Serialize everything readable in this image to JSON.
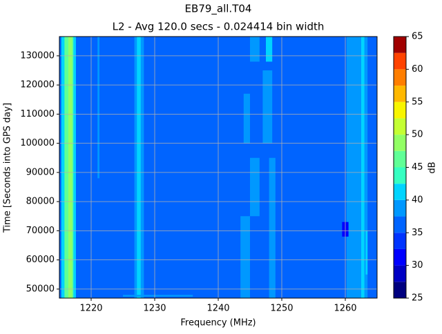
{
  "chart_data": {
    "type": "heatmap",
    "title": "EB79_all.T04",
    "subtitle": "L2 - Avg 120.0 secs - 0.024414 bin width",
    "x_label": "Frequency (MHz)",
    "y_label": "Time [Seconds into GPS day]",
    "colorbar_label": "dB",
    "xlim": [
      1215,
      1265
    ],
    "xticks": [
      1220,
      1230,
      1240,
      1250,
      1260
    ],
    "ylim": [
      46900,
      136600
    ],
    "yticks": [
      50000,
      60000,
      70000,
      80000,
      90000,
      100000,
      110000,
      120000,
      130000
    ],
    "grid": true,
    "levels": [
      25,
      27.5,
      30,
      32.5,
      35,
      37.5,
      40,
      42.5,
      45,
      47.5,
      50,
      52.5,
      55,
      57.5,
      60,
      62.5,
      65
    ],
    "colors": [
      "#00007f",
      "#0000c4",
      "#0000ff",
      "#0034ff",
      "#0064ff",
      "#0098ff",
      "#00d4ff",
      "#36ffc1",
      "#60ff96",
      "#92ff64",
      "#c4ff33",
      "#f8f500",
      "#ffb800",
      "#ff7e00",
      "#ff4300",
      "#a00000"
    ],
    "colorbar_ticks": [
      25,
      30,
      35,
      40,
      45,
      50,
      55,
      60,
      65
    ],
    "background_value": 36,
    "features": [
      {
        "x0": 1215.3,
        "x1": 1217.6,
        "y0": 46900,
        "y1": 136600,
        "value": 41
      },
      {
        "x0": 1215.8,
        "x1": 1217.2,
        "y0": 46900,
        "y1": 136600,
        "value": 46
      },
      {
        "x0": 1216.4,
        "x1": 1217.0,
        "y0": 46900,
        "y1": 136600,
        "value": 49
      },
      {
        "x0": 1221.0,
        "x1": 1221.3,
        "y0": 88000,
        "y1": 136600,
        "value": 38.5
      },
      {
        "x0": 1226.8,
        "x1": 1228.3,
        "y0": 46900,
        "y1": 136600,
        "value": 38.5
      },
      {
        "x0": 1227.2,
        "x1": 1227.8,
        "y0": 46900,
        "y1": 136600,
        "value": 41
      },
      {
        "x0": 1225.0,
        "x1": 1236.0,
        "y0": 47400,
        "y1": 48000,
        "value": 38.5
      },
      {
        "x0": 1243.5,
        "x1": 1245.0,
        "y0": 46900,
        "y1": 75000,
        "value": 38.5
      },
      {
        "x0": 1245.0,
        "x1": 1246.5,
        "y0": 75000,
        "y1": 95000,
        "value": 38.5
      },
      {
        "x0": 1244.0,
        "x1": 1245.0,
        "y0": 100000,
        "y1": 117000,
        "value": 38.5
      },
      {
        "x0": 1248.0,
        "x1": 1249.0,
        "y0": 46900,
        "y1": 95000,
        "value": 38.5
      },
      {
        "x0": 1247.0,
        "x1": 1248.5,
        "y0": 100000,
        "y1": 125000,
        "value": 38.5
      },
      {
        "x0": 1245.0,
        "x1": 1246.5,
        "y0": 128000,
        "y1": 136600,
        "value": 38.5
      },
      {
        "x0": 1247.5,
        "x1": 1248.5,
        "y0": 128000,
        "y1": 136600,
        "value": 41
      },
      {
        "x0": 1260.2,
        "x1": 1263.5,
        "y0": 46900,
        "y1": 136600,
        "value": 38.5
      },
      {
        "x0": 1262.5,
        "x1": 1263.0,
        "y0": 46900,
        "y1": 136600,
        "value": 41
      },
      {
        "x0": 1263.2,
        "x1": 1263.5,
        "y0": 55000,
        "y1": 70000,
        "value": 41
      },
      {
        "x0": 1259.5,
        "x1": 1260.5,
        "y0": 68000,
        "y1": 73000,
        "value": 30
      }
    ]
  }
}
